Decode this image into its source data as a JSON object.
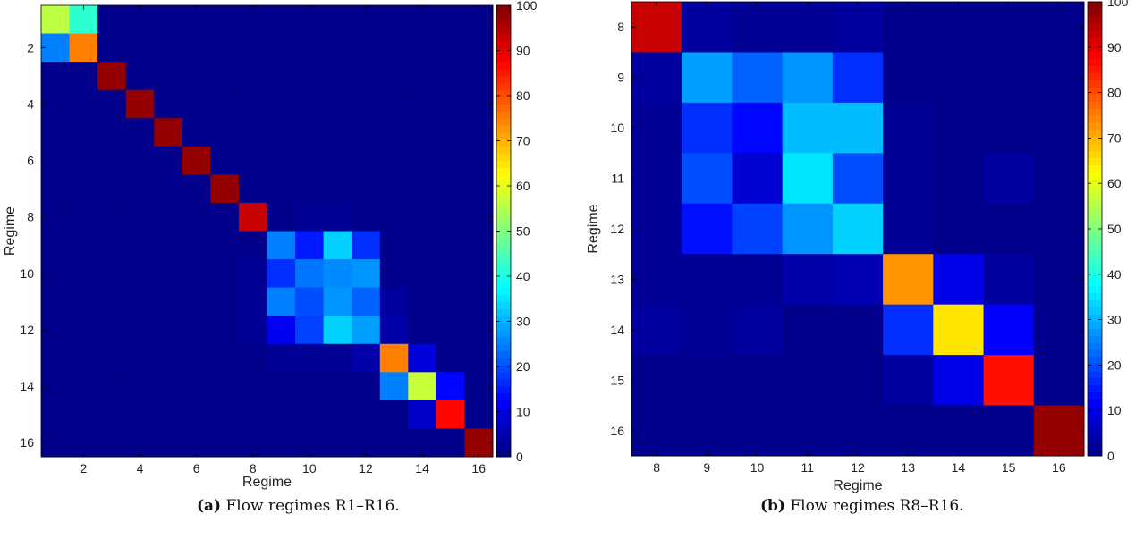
{
  "colorscale": "jet",
  "figure_a": {
    "caption_label": "(a)",
    "caption_text": "Flow regimes R1–R16.",
    "chart_data": {
      "type": "heatmap",
      "title": "",
      "xlabel": "Regime",
      "ylabel": "Regime",
      "x_ticks": [
        "2",
        "4",
        "6",
        "8",
        "10",
        "12",
        "14",
        "16"
      ],
      "y_ticks": [
        "2",
        "4",
        "6",
        "8",
        "10",
        "12",
        "14",
        "16"
      ],
      "x_categories": [
        1,
        2,
        3,
        4,
        5,
        6,
        7,
        8,
        9,
        10,
        11,
        12,
        13,
        14,
        15,
        16
      ],
      "y_categories": [
        1,
        2,
        3,
        4,
        5,
        6,
        7,
        8,
        9,
        10,
        11,
        12,
        13,
        14,
        15,
        16
      ],
      "zlim": [
        0,
        100
      ],
      "colorbar_ticks": [
        "0",
        "10",
        "20",
        "30",
        "40",
        "50",
        "60",
        "70",
        "80",
        "90",
        "100"
      ],
      "values": [
        [
          56,
          42,
          1,
          1,
          1,
          1,
          1,
          1,
          1,
          1,
          1,
          1,
          1,
          1,
          1,
          1
        ],
        [
          25,
          75,
          1,
          1,
          1,
          1,
          1,
          1,
          1,
          1,
          1,
          1,
          1,
          1,
          1,
          1
        ],
        [
          1,
          1,
          98,
          1,
          1,
          1,
          1,
          1,
          1,
          1,
          1,
          1,
          1,
          1,
          1,
          1
        ],
        [
          1,
          1,
          1,
          98,
          1,
          1,
          1,
          1,
          1,
          1,
          1,
          1,
          1,
          1,
          1,
          1
        ],
        [
          1,
          1,
          1,
          1,
          98,
          1,
          1,
          1,
          1,
          1,
          1,
          1,
          1,
          1,
          1,
          1
        ],
        [
          1,
          1,
          1,
          1,
          1,
          98,
          1,
          1,
          1,
          1,
          1,
          1,
          1,
          1,
          1,
          1
        ],
        [
          1,
          1,
          1,
          1,
          1,
          1,
          98,
          1,
          1,
          1,
          1,
          1,
          1,
          1,
          1,
          1
        ],
        [
          1,
          1,
          1,
          1,
          1,
          1,
          1,
          93,
          1,
          2,
          2,
          1,
          1,
          1,
          1,
          1
        ],
        [
          1,
          1,
          1,
          1,
          1,
          1,
          1,
          1,
          25,
          15,
          33,
          17,
          1,
          1,
          1,
          1
        ],
        [
          1,
          1,
          1,
          1,
          1,
          1,
          1,
          2,
          17,
          24,
          26,
          27,
          1,
          1,
          1,
          1
        ],
        [
          1,
          1,
          1,
          1,
          1,
          1,
          1,
          2,
          25,
          20,
          27,
          22,
          3,
          1,
          1,
          1
        ],
        [
          1,
          1,
          1,
          1,
          1,
          1,
          1,
          2,
          11,
          19,
          33,
          28,
          4,
          1,
          1,
          1
        ],
        [
          1,
          1,
          1,
          1,
          1,
          1,
          1,
          1,
          2,
          2,
          2,
          4,
          75,
          9,
          1,
          1
        ],
        [
          1,
          1,
          1,
          1,
          1,
          1,
          1,
          1,
          1,
          1,
          1,
          1,
          25,
          57,
          13,
          1
        ],
        [
          1,
          1,
          1,
          1,
          1,
          1,
          1,
          1,
          1,
          1,
          1,
          1,
          1,
          7,
          87,
          1
        ],
        [
          1,
          1,
          1,
          1,
          1,
          1,
          1,
          1,
          1,
          1,
          1,
          1,
          1,
          1,
          1,
          98
        ]
      ]
    }
  },
  "figure_b": {
    "caption_label": "(b)",
    "caption_text": "Flow regimes R8–R16.",
    "chart_data": {
      "type": "heatmap",
      "title": "",
      "xlabel": "Regime",
      "ylabel": "Regime",
      "x_ticks": [
        "8",
        "9",
        "10",
        "11",
        "12",
        "13",
        "14",
        "15",
        "16"
      ],
      "y_ticks": [
        "8",
        "9",
        "10",
        "11",
        "12",
        "13",
        "14",
        "15",
        "16"
      ],
      "x_categories": [
        8,
        9,
        10,
        11,
        12,
        13,
        14,
        15,
        16
      ],
      "y_categories": [
        8,
        9,
        10,
        11,
        12,
        13,
        14,
        15,
        16
      ],
      "zlim": [
        0,
        100
      ],
      "colorbar_ticks": [
        "0",
        "10",
        "20",
        "30",
        "40",
        "50",
        "60",
        "70",
        "80",
        "90",
        "100"
      ],
      "values": [
        [
          93,
          3,
          2,
          2,
          3,
          1,
          1,
          1,
          1
        ],
        [
          3,
          28,
          22,
          27,
          17,
          1,
          1,
          1,
          1
        ],
        [
          2,
          17,
          13,
          31,
          31,
          2,
          1,
          1,
          1
        ],
        [
          2,
          20,
          8,
          35,
          20,
          2,
          1,
          3,
          1
        ],
        [
          2,
          14,
          19,
          27,
          33,
          2,
          1,
          1,
          1
        ],
        [
          2,
          2,
          2,
          4,
          5,
          73,
          10,
          3,
          1
        ],
        [
          3,
          2,
          3,
          1,
          1,
          17,
          65,
          12,
          1
        ],
        [
          1,
          1,
          1,
          1,
          1,
          3,
          10,
          86,
          1
        ],
        [
          1,
          1,
          1,
          1,
          1,
          1,
          1,
          1,
          98
        ]
      ]
    }
  }
}
